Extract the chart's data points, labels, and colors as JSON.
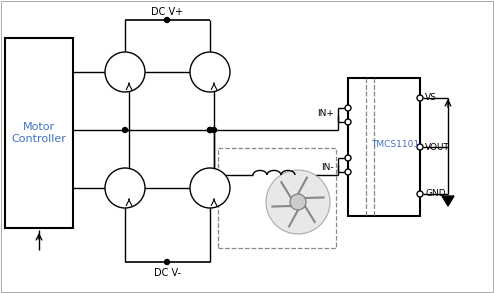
{
  "bg_color": "#ffffff",
  "blue_color": "#4472C4",
  "motor_controller_label": "Motor\nController",
  "tmcs_label": "TMCS1101",
  "vs_label": "VS",
  "vout_label": "VOUT",
  "gnd_label": "GND",
  "inp_label": "IN+",
  "inn_label": "IN-",
  "dcvp_label": "DC V+",
  "dcvm_label": "DC V-",
  "figsize": [
    4.94,
    2.93
  ],
  "dpi": 100
}
